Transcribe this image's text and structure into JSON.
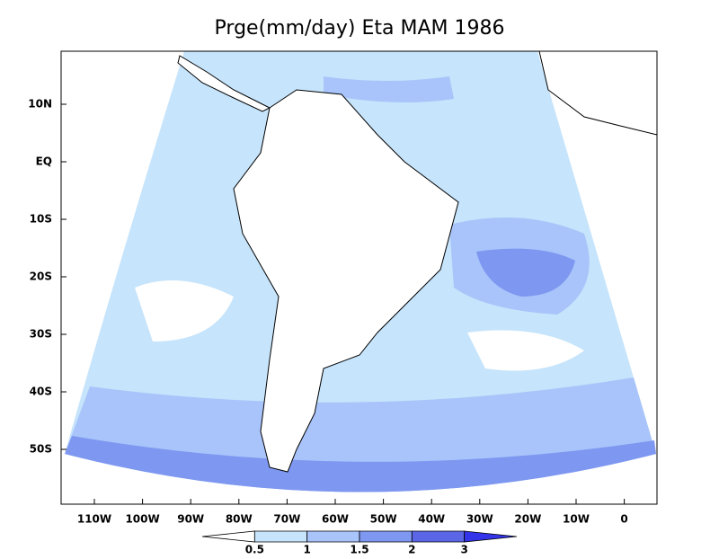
{
  "title": "Prge(mm/day) Eta MAM 1986",
  "lat_labels": [
    "10N",
    "EQ",
    "10S",
    "20S",
    "30S",
    "40S",
    "50S"
  ],
  "lon_labels": [
    "110W",
    "100W",
    "90W",
    "80W",
    "70W",
    "60W",
    "50W",
    "40W",
    "30W",
    "20W",
    "10W",
    "0"
  ],
  "colorbar": {
    "levels": [
      0.5,
      1,
      1.5,
      2,
      3
    ],
    "colors": [
      "#ffffff",
      "#c6e4fb",
      "#a8c4fa",
      "#7e97f0",
      "#5a66e6",
      "#3434e8"
    ]
  }
}
